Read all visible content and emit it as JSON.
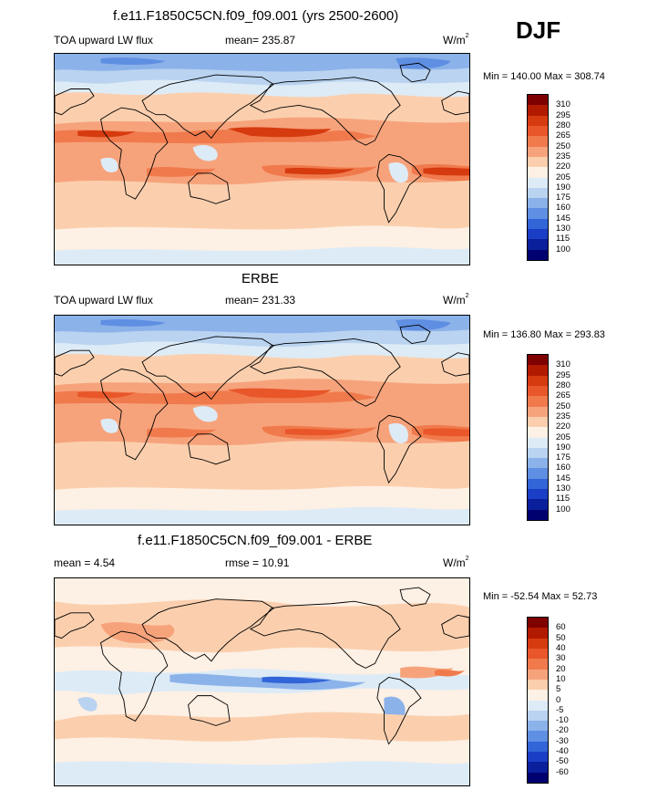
{
  "season": "DJF",
  "panels": [
    {
      "id": "model",
      "title": "f.e11.F1850C5CN.f09_f09.001 (yrs 2500-2600)",
      "left_label": "TOA upward LW flux",
      "center_label": "mean= 235.87",
      "units_base": "W/m",
      "units_sup": "2",
      "minmax": "Min = 140.00 Max = 308.74",
      "palette": "lw",
      "field": "model"
    },
    {
      "id": "obs",
      "title": "ERBE",
      "left_label": "TOA upward LW flux",
      "center_label": "mean= 231.33",
      "units_base": "W/m",
      "units_sup": "2",
      "minmax": "Min = 136.80 Max = 293.83",
      "palette": "lw",
      "field": "obs"
    },
    {
      "id": "diff",
      "title": "f.e11.F1850C5CN.f09_f09.001 - ERBE",
      "left_label": "mean =   4.54",
      "center_label": "rmse =  10.91",
      "units_base": "W/m",
      "units_sup": "2",
      "minmax": "Min = -52.54 Max =  52.73",
      "palette": "diff",
      "field": "diff"
    }
  ],
  "colorbars": {
    "lw": {
      "levels": [
        "310",
        "295",
        "280",
        "265",
        "250",
        "235",
        "220",
        "205",
        "190",
        "175",
        "160",
        "145",
        "130",
        "115",
        "100"
      ],
      "colors": [
        "#7f0000",
        "#b21a00",
        "#d63a0f",
        "#e8562a",
        "#f07a4c",
        "#f6a37c",
        "#fbcfae",
        "#fdf0e4",
        "#ddebf6",
        "#b9d3f0",
        "#8cb2ea",
        "#5f8fe2",
        "#3265d8",
        "#1a3fc6",
        "#0a1f9c",
        "#000070"
      ]
    },
    "diff": {
      "levels": [
        "60",
        "50",
        "40",
        "30",
        "20",
        "10",
        "5",
        "0",
        "-5",
        "-10",
        "-20",
        "-30",
        "-40",
        "-50",
        "-60"
      ],
      "colors": [
        "#7f0000",
        "#b21a00",
        "#d63a0f",
        "#e8562a",
        "#f07a4c",
        "#f6a37c",
        "#fbcfae",
        "#fdf0e4",
        "#ddebf6",
        "#b9d3f0",
        "#8cb2ea",
        "#5f8fe2",
        "#3265d8",
        "#1a3fc6",
        "#0a1f9c",
        "#000070"
      ]
    }
  }
}
